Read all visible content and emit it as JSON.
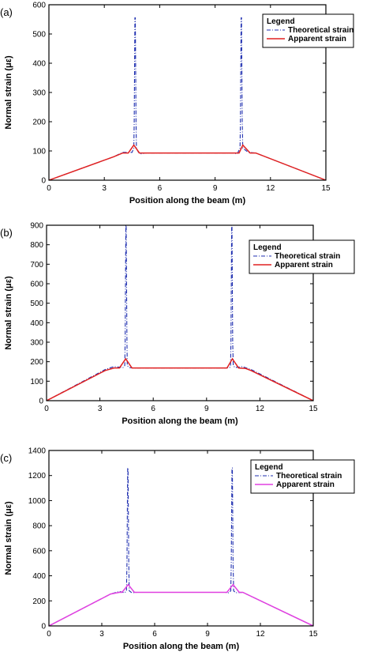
{
  "chart_data": [
    {
      "panel_label": "(a)",
      "type": "line",
      "xlabel": "Position along the beam (m)",
      "ylabel": "Normal strain (με)",
      "xlim": [
        0,
        15
      ],
      "ylim": [
        0,
        600
      ],
      "xticks": [
        0,
        3,
        6,
        9,
        12,
        15
      ],
      "yticks": [
        0,
        100,
        200,
        300,
        400,
        500,
        600
      ],
      "legend": {
        "title": "Legend",
        "position": "top-right"
      },
      "series": [
        {
          "name": "Theoretical strain",
          "color": "#1f2fb0",
          "style": "dash-dot",
          "x": [
            0,
            3.5,
            4.0,
            4.5,
            4.6,
            4.62,
            4.66,
            4.68,
            4.72,
            4.74,
            4.85,
            5.0,
            5.2,
            10.0,
            10.2,
            10.35,
            10.37,
            10.41,
            10.43,
            10.47,
            10.5,
            10.8,
            11.2,
            15
          ],
          "y": [
            0,
            80,
            95,
            95,
            110,
            200,
            555,
            555,
            200,
            110,
            95,
            90,
            93,
            93,
            90,
            110,
            200,
            555,
            555,
            200,
            110,
            95,
            93,
            0
          ]
        },
        {
          "name": "Apparent strain",
          "color": "#e02020",
          "style": "solid",
          "x": [
            0,
            3.5,
            4.0,
            4.3,
            4.6,
            4.9,
            5.2,
            10.0,
            10.3,
            10.5,
            10.9,
            11.2,
            15
          ],
          "y": [
            0,
            80,
            93,
            93,
            120,
            93,
            93,
            93,
            93,
            120,
            93,
            93,
            0
          ]
        }
      ]
    },
    {
      "panel_label": "(b)",
      "type": "line",
      "xlabel": "Position along the beam (m)",
      "ylabel": "Normal strain (με)",
      "xlim": [
        0,
        15
      ],
      "ylim": [
        0,
        900
      ],
      "xticks": [
        0,
        3,
        6,
        9,
        12,
        15
      ],
      "yticks": [
        0,
        100,
        200,
        300,
        400,
        500,
        600,
        700,
        800,
        900
      ],
      "legend": {
        "title": "Legend",
        "position": "top-right"
      },
      "series": [
        {
          "name": "Theoretical strain",
          "color": "#1f2fb0",
          "style": "dash-dot",
          "x": [
            0,
            3.3,
            3.8,
            4.3,
            4.4,
            4.42,
            4.46,
            4.48,
            4.52,
            4.54,
            4.65,
            4.9,
            10.1,
            10.3,
            10.35,
            10.37,
            10.41,
            10.43,
            10.47,
            10.5,
            10.6,
            11.0,
            11.5,
            15
          ],
          "y": [
            0,
            160,
            175,
            170,
            180,
            300,
            900,
            900,
            300,
            180,
            170,
            168,
            168,
            170,
            180,
            300,
            900,
            900,
            300,
            180,
            170,
            175,
            160,
            0
          ]
        },
        {
          "name": "Apparent strain",
          "color": "#e02020",
          "style": "solid",
          "x": [
            0,
            3.3,
            3.8,
            4.1,
            4.45,
            4.8,
            5.0,
            10.0,
            10.15,
            10.45,
            10.8,
            11.2,
            11.5,
            15
          ],
          "y": [
            0,
            155,
            168,
            168,
            215,
            168,
            168,
            168,
            168,
            215,
            168,
            165,
            155,
            0
          ]
        }
      ]
    },
    {
      "panel_label": "(c)",
      "type": "line",
      "xlabel": "Position along the beam (m)",
      "ylabel": "Normal strain (με)",
      "xlim": [
        0,
        15
      ],
      "ylim": [
        0,
        1400
      ],
      "xticks": [
        0,
        3,
        6,
        9,
        12,
        15
      ],
      "yticks": [
        0,
        200,
        400,
        600,
        800,
        1000,
        1200,
        1400
      ],
      "legend": {
        "title": "Legend",
        "position": "top-right"
      },
      "series": [
        {
          "name": "Theoretical strain",
          "color": "#1f2fb0",
          "style": "dash-dot",
          "x": [
            0,
            3.5,
            4.0,
            4.3,
            4.4,
            4.43,
            4.47,
            4.49,
            4.53,
            4.56,
            4.7,
            5.0,
            10.0,
            10.2,
            10.32,
            10.35,
            10.39,
            10.41,
            10.45,
            10.48,
            10.6,
            11.0,
            15
          ],
          "y": [
            0,
            255,
            275,
            265,
            280,
            500,
            1260,
            1260,
            500,
            280,
            265,
            268,
            268,
            265,
            280,
            500,
            1260,
            1260,
            500,
            280,
            265,
            268,
            0
          ]
        },
        {
          "name": "Apparent strain",
          "color": "#e040e0",
          "style": "solid",
          "x": [
            0,
            3.5,
            4.0,
            4.15,
            4.5,
            4.85,
            5.0,
            10.0,
            10.1,
            10.45,
            10.8,
            11.0,
            15
          ],
          "y": [
            0,
            255,
            268,
            268,
            330,
            268,
            268,
            268,
            268,
            330,
            268,
            268,
            0
          ]
        }
      ]
    }
  ]
}
